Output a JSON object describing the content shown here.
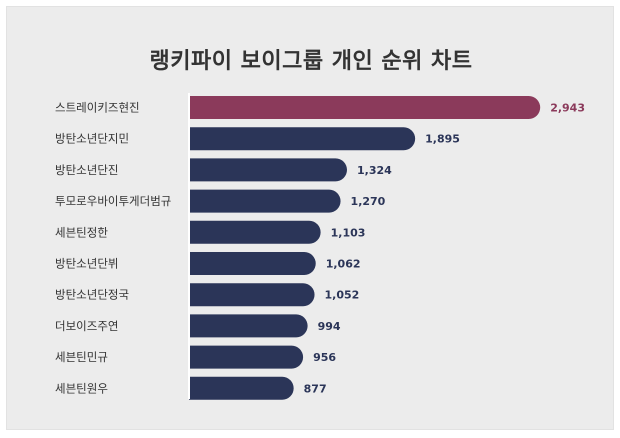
{
  "chart_data": {
    "type": "bar",
    "orientation": "horizontal",
    "title": "랭키파이 보이그룹 개인 순위 차트",
    "categories": [
      "스트레이키즈현진",
      "방탄소년단지민",
      "방탄소년단진",
      "투모로우바이투게더범규",
      "세븐틴정한",
      "방탄소년단뷔",
      "방탄소년단정국",
      "더보이즈주연",
      "세븐틴민규",
      "세븐틴원우"
    ],
    "values": [
      2943,
      1895,
      1324,
      1270,
      1103,
      1062,
      1052,
      994,
      956,
      877
    ],
    "value_labels": [
      "2,943",
      "1,895",
      "1,324",
      "1,270",
      "1,103",
      "1,062",
      "1,052",
      "994",
      "956",
      "877"
    ],
    "xlim": [
      0,
      3000
    ],
    "grid": false,
    "legend": "none",
    "colors": {
      "highlight": "#8b3a5b",
      "bar": "#2b3558",
      "value_highlight": "#8b3a5b",
      "value": "#2b3558"
    }
  }
}
